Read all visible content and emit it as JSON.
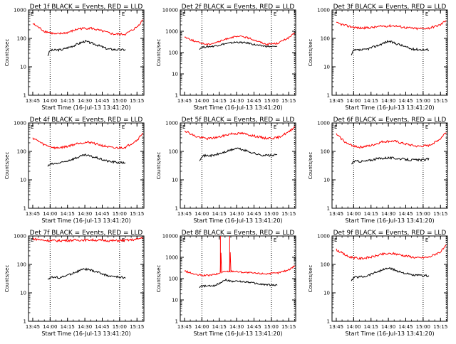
{
  "colors": {
    "events": "#000000",
    "lld": "#ff0000",
    "axes": "#000000",
    "background": "#ffffff"
  },
  "chart_data": [
    {
      "type": "line",
      "title": "Det 1f BLACK = Events, RED = LLD",
      "xlabel": "Start Time (16-Jul-13 13:41:20)",
      "ylabel": "Counts/sec",
      "yscale": "log",
      "ylim": [
        1,
        1000
      ],
      "xlim": [
        "13:41:20",
        "15:21:00"
      ],
      "xticks": [
        "13:45",
        "14:00",
        "14:15",
        "14:30",
        "14:45",
        "15:00",
        "15:15"
      ],
      "yticks": [
        "1",
        "10",
        "100",
        "1000"
      ],
      "marker": "E",
      "vlines": [
        "14:00",
        "15:00",
        "15:20"
      ],
      "series": [
        {
          "name": "Events",
          "color": "#000000",
          "x": [
            "13:58",
            "14:00",
            "14:10",
            "14:20",
            "14:30",
            "14:40",
            "14:50",
            "15:00",
            "15:05"
          ],
          "values": [
            25,
            38,
            40,
            55,
            80,
            60,
            42,
            40,
            40
          ]
        },
        {
          "name": "LLD",
          "color": "#ff0000",
          "x": [
            "13:45",
            "13:55",
            "14:05",
            "14:15",
            "14:25",
            "14:35",
            "14:45",
            "14:55",
            "15:05",
            "15:15",
            "15:20"
          ],
          "values": [
            330,
            180,
            140,
            160,
            220,
            230,
            180,
            140,
            140,
            250,
            450
          ]
        }
      ]
    },
    {
      "type": "line",
      "title": "Det 2f BLACK = Events, RED = LLD",
      "xlabel": "Start Time (16-Jul-13 13:41:20)",
      "ylabel": "Counts/sec",
      "yscale": "log",
      "ylim": [
        1,
        10000
      ],
      "xlim": [
        "13:41:20",
        "15:21:00"
      ],
      "xticks": [
        "13:45",
        "14:00",
        "14:15",
        "14:30",
        "14:45",
        "15:00",
        "15:15"
      ],
      "yticks": [
        "1",
        "10",
        "100",
        "1000",
        "10000"
      ],
      "marker": "E",
      "vlines": [
        "14:00",
        "15:00",
        "15:20"
      ],
      "series": [
        {
          "name": "Events",
          "color": "#000000",
          "x": [
            "13:58",
            "14:00",
            "14:10",
            "14:20",
            "14:30",
            "14:40",
            "14:50",
            "15:00",
            "15:05"
          ],
          "values": [
            150,
            180,
            200,
            260,
            310,
            280,
            210,
            190,
            190
          ]
        },
        {
          "name": "LLD",
          "color": "#ff0000",
          "x": [
            "13:45",
            "13:55",
            "14:05",
            "14:15",
            "14:25",
            "14:35",
            "14:45",
            "14:55",
            "15:05",
            "15:15",
            "15:20"
          ],
          "values": [
            550,
            320,
            240,
            330,
            520,
            580,
            400,
            250,
            270,
            500,
            800
          ]
        }
      ]
    },
    {
      "type": "line",
      "title": "Det 3f BLACK = Events, RED = LLD",
      "xlabel": "Start Time (16-Jul-13 13:41:20)",
      "ylabel": "Counts/sec",
      "yscale": "log",
      "ylim": [
        1,
        1000
      ],
      "xlim": [
        "13:41:20",
        "15:21:00"
      ],
      "xticks": [
        "13:45",
        "14:00",
        "14:15",
        "14:30",
        "14:45",
        "15:00",
        "15:15"
      ],
      "yticks": [
        "1",
        "10",
        "100",
        "1000"
      ],
      "marker": "E",
      "vlines": [
        "14:00",
        "15:00",
        "15:20"
      ],
      "series": [
        {
          "name": "Events",
          "color": "#000000",
          "x": [
            "13:58",
            "14:00",
            "14:10",
            "14:20",
            "14:30",
            "14:40",
            "14:50",
            "15:00",
            "15:05"
          ],
          "values": [
            25,
            38,
            40,
            55,
            80,
            60,
            42,
            40,
            40
          ]
        },
        {
          "name": "LLD",
          "color": "#ff0000",
          "x": [
            "13:45",
            "13:55",
            "14:05",
            "14:15",
            "14:25",
            "14:35",
            "14:45",
            "14:55",
            "15:05",
            "15:15",
            "15:20"
          ],
          "values": [
            350,
            270,
            230,
            240,
            270,
            280,
            240,
            220,
            230,
            300,
            450
          ]
        }
      ]
    },
    {
      "type": "line",
      "title": "Det 4f BLACK = Events, RED = LLD",
      "xlabel": "Start Time (16-Jul-13 13:41:20)",
      "ylabel": "Counts/sec",
      "yscale": "log",
      "ylim": [
        1,
        1000
      ],
      "xlim": [
        "13:41:20",
        "15:21:00"
      ],
      "xticks": [
        "13:45",
        "14:00",
        "14:15",
        "14:30",
        "14:45",
        "15:00",
        "15:15"
      ],
      "yticks": [
        "1",
        "10",
        "100",
        "1000"
      ],
      "marker": "E",
      "vlines": [
        "14:00",
        "15:00",
        "15:20"
      ],
      "series": [
        {
          "name": "Events",
          "color": "#000000",
          "x": [
            "13:58",
            "14:00",
            "14:10",
            "14:20",
            "14:30",
            "14:40",
            "14:50",
            "15:00",
            "15:05"
          ],
          "values": [
            30,
            35,
            40,
            55,
            75,
            60,
            45,
            40,
            40
          ]
        },
        {
          "name": "LLD",
          "color": "#ff0000",
          "x": [
            "13:45",
            "13:55",
            "14:05",
            "14:15",
            "14:25",
            "14:35",
            "14:45",
            "14:55",
            "15:05",
            "15:15",
            "15:20"
          ],
          "values": [
            300,
            170,
            130,
            150,
            200,
            210,
            160,
            130,
            140,
            250,
            450
          ]
        }
      ]
    },
    {
      "type": "line",
      "title": "Det 5f BLACK = Events, RED = LLD",
      "xlabel": "Start Time (16-Jul-13 13:41:20)",
      "ylabel": "Counts/sec",
      "yscale": "log",
      "ylim": [
        1,
        1000
      ],
      "xlim": [
        "13:41:20",
        "15:21:00"
      ],
      "xticks": [
        "13:45",
        "14:00",
        "14:15",
        "14:30",
        "14:45",
        "15:00",
        "15:15"
      ],
      "yticks": [
        "1",
        "10",
        "100",
        "1000"
      ],
      "marker": "E",
      "vlines": [
        "14:00",
        "15:00",
        "15:20"
      ],
      "series": [
        {
          "name": "Events",
          "color": "#000000",
          "x": [
            "13:58",
            "14:00",
            "14:10",
            "14:20",
            "14:30",
            "14:40",
            "14:50",
            "15:00",
            "15:05"
          ],
          "values": [
            50,
            70,
            72,
            95,
            130,
            100,
            75,
            72,
            75
          ]
        },
        {
          "name": "LLD",
          "color": "#ff0000",
          "x": [
            "13:45",
            "13:55",
            "14:05",
            "14:15",
            "14:25",
            "14:35",
            "14:45",
            "14:55",
            "15:05",
            "15:15",
            "15:20"
          ],
          "values": [
            550,
            330,
            280,
            320,
            420,
            430,
            350,
            290,
            300,
            480,
            750
          ]
        }
      ]
    },
    {
      "type": "line",
      "title": "Det 6f BLACK = Events, RED = LLD",
      "xlabel": "Start Time (16-Jul-13 13:41:20)",
      "ylabel": "Counts/sec",
      "yscale": "log",
      "ylim": [
        1,
        1000
      ],
      "xlim": [
        "13:41:20",
        "15:21:00"
      ],
      "xticks": [
        "13:45",
        "14:00",
        "14:15",
        "14:30",
        "14:45",
        "15:00",
        "15:15"
      ],
      "yticks": [
        "1",
        "10",
        "100",
        "1000"
      ],
      "marker": "E",
      "vlines": [
        "14:00",
        "15:00",
        "15:20"
      ],
      "series": [
        {
          "name": "Events",
          "color": "#000000",
          "x": [
            "13:58",
            "14:00",
            "14:10",
            "14:20",
            "14:30",
            "14:40",
            "14:50",
            "15:00",
            "15:05"
          ],
          "values": [
            35,
            45,
            45,
            55,
            60,
            55,
            50,
            50,
            55
          ]
        },
        {
          "name": "LLD",
          "color": "#ff0000",
          "x": [
            "13:45",
            "13:55",
            "14:05",
            "14:15",
            "14:25",
            "14:35",
            "14:45",
            "14:55",
            "15:05",
            "15:15",
            "15:20"
          ],
          "values": [
            400,
            180,
            140,
            160,
            220,
            230,
            180,
            150,
            160,
            280,
            500
          ]
        }
      ]
    },
    {
      "type": "line",
      "title": "Det 7f BLACK = Events, RED = LLD",
      "xlabel": "Start Time (16-Jul-13 13:41:20)",
      "ylabel": "Counts/sec",
      "yscale": "log",
      "ylim": [
        1,
        1000
      ],
      "xlim": [
        "13:41:20",
        "15:21:00"
      ],
      "xticks": [
        "13:45",
        "14:00",
        "14:15",
        "14:30",
        "14:45",
        "15:00",
        "15:15"
      ],
      "yticks": [
        "1",
        "10",
        "100",
        "1000"
      ],
      "marker": "E",
      "vlines": [
        "14:00",
        "15:00",
        "15:20"
      ],
      "series": [
        {
          "name": "Events",
          "color": "#000000",
          "x": [
            "13:58",
            "14:00",
            "14:10",
            "14:20",
            "14:30",
            "14:40",
            "14:50",
            "15:00",
            "15:05"
          ],
          "values": [
            30,
            35,
            35,
            50,
            70,
            55,
            40,
            35,
            35
          ]
        },
        {
          "name": "LLD",
          "color": "#ff0000",
          "x": [
            "13:45",
            "13:55",
            "14:05",
            "14:15",
            "14:25",
            "14:35",
            "14:45",
            "14:55",
            "15:05",
            "15:15",
            "15:20"
          ],
          "values": [
            800,
            700,
            680,
            700,
            720,
            730,
            700,
            680,
            700,
            760,
            900
          ]
        }
      ]
    },
    {
      "type": "line",
      "title": "Det 8f BLACK = Events, RED = LLD",
      "xlabel": "Start Time (16-Jul-13 13:41:20)",
      "ylabel": "Counts/sec",
      "yscale": "log",
      "ylim": [
        1,
        10000
      ],
      "xlim": [
        "13:41:20",
        "15:21:00"
      ],
      "xticks": [
        "13:45",
        "14:00",
        "14:15",
        "14:30",
        "14:45",
        "15:00",
        "15:15"
      ],
      "yticks": [
        "1",
        "10",
        "100",
        "1000",
        "10000"
      ],
      "marker": "E",
      "vlines": [
        "14:00",
        "15:00",
        "15:20"
      ],
      "series": [
        {
          "name": "Events",
          "color": "#000000",
          "x": [
            "13:58",
            "14:00",
            "14:10",
            "14:15",
            "14:20",
            "14:25",
            "14:30",
            "14:40",
            "14:50",
            "15:00",
            "15:05"
          ],
          "values": [
            40,
            45,
            45,
            60,
            90,
            75,
            75,
            70,
            55,
            50,
            50
          ]
        },
        {
          "name": "LLD",
          "color": "#ff0000",
          "x": [
            "13:45",
            "13:55",
            "14:05",
            "14:15",
            "14:16",
            "14:16",
            "14:17",
            "14:23",
            "14:24",
            "14:24",
            "14:25",
            "14:35",
            "14:45",
            "14:55",
            "15:05",
            "15:15",
            "15:20"
          ],
          "values": [
            230,
            150,
            140,
            170,
            200,
            10000,
            200,
            220,
            230,
            10000,
            230,
            200,
            180,
            170,
            180,
            260,
            400
          ]
        }
      ]
    },
    {
      "type": "line",
      "title": "Det 9f BLACK = Events, RED = LLD",
      "xlabel": "Start Time (16-Jul-13 13:41:20)",
      "ylabel": "Counts/sec",
      "yscale": "log",
      "ylim": [
        1,
        1000
      ],
      "xlim": [
        "13:41:20",
        "15:21:00"
      ],
      "xticks": [
        "13:45",
        "14:00",
        "14:15",
        "14:30",
        "14:45",
        "15:00",
        "15:15"
      ],
      "yticks": [
        "1",
        "10",
        "100",
        "1000"
      ],
      "marker": "E",
      "vlines": [
        "14:00",
        "15:00",
        "15:20"
      ],
      "series": [
        {
          "name": "Events",
          "color": "#000000",
          "x": [
            "13:58",
            "14:00",
            "14:10",
            "14:20",
            "14:30",
            "14:40",
            "14:50",
            "15:00",
            "15:05"
          ],
          "values": [
            25,
            35,
            38,
            55,
            75,
            55,
            42,
            40,
            40
          ]
        },
        {
          "name": "LLD",
          "color": "#ff0000",
          "x": [
            "13:45",
            "13:55",
            "14:05",
            "14:15",
            "14:25",
            "14:35",
            "14:45",
            "14:55",
            "15:05",
            "15:15",
            "15:20"
          ],
          "values": [
            330,
            190,
            160,
            180,
            230,
            240,
            200,
            170,
            180,
            280,
            450
          ]
        }
      ]
    }
  ]
}
